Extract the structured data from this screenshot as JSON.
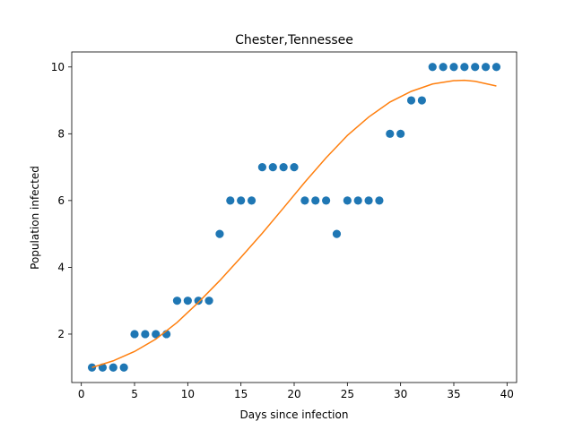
{
  "chart_data": {
    "type": "scatter",
    "title": "Chester,Tennessee",
    "xlabel": "Days since infection",
    "ylabel": "Population infected",
    "xlim": [
      -0.9,
      40.9
    ],
    "ylim": [
      0.55,
      10.45
    ],
    "xticks": [
      0,
      5,
      10,
      15,
      20,
      25,
      30,
      35,
      40
    ],
    "yticks": [
      2,
      4,
      6,
      8,
      10
    ],
    "grid": false,
    "series": [
      {
        "kind": "points",
        "color": "#1f77b4",
        "x": [
          1,
          2,
          3,
          4,
          5,
          6,
          7,
          8,
          9,
          10,
          11,
          12,
          13,
          14,
          15,
          16,
          17,
          18,
          19,
          20,
          21,
          22,
          23,
          24,
          25,
          26,
          27,
          28,
          29,
          30,
          31,
          32,
          33,
          34,
          35,
          36,
          37,
          38,
          39
        ],
        "y": [
          1,
          1,
          1,
          1,
          2,
          2,
          2,
          2,
          3,
          3,
          3,
          3,
          5,
          6,
          6,
          6,
          7,
          7,
          7,
          7,
          6,
          6,
          6,
          5,
          6,
          6,
          6,
          6,
          8,
          8,
          9,
          9,
          10,
          10,
          10,
          10,
          10,
          10,
          10
        ]
      },
      {
        "kind": "fit-line",
        "color": "#ff7f0e",
        "x": [
          1,
          3,
          5,
          7,
          9,
          11,
          13,
          15,
          17,
          19,
          21,
          23,
          25,
          27,
          29,
          31,
          33,
          35,
          36,
          37,
          39
        ],
        "y": [
          1.0,
          1.2,
          1.48,
          1.85,
          2.35,
          2.95,
          3.6,
          4.3,
          5.02,
          5.78,
          6.55,
          7.28,
          7.95,
          8.5,
          8.95,
          9.27,
          9.49,
          9.59,
          9.6,
          9.57,
          9.43
        ]
      }
    ]
  }
}
